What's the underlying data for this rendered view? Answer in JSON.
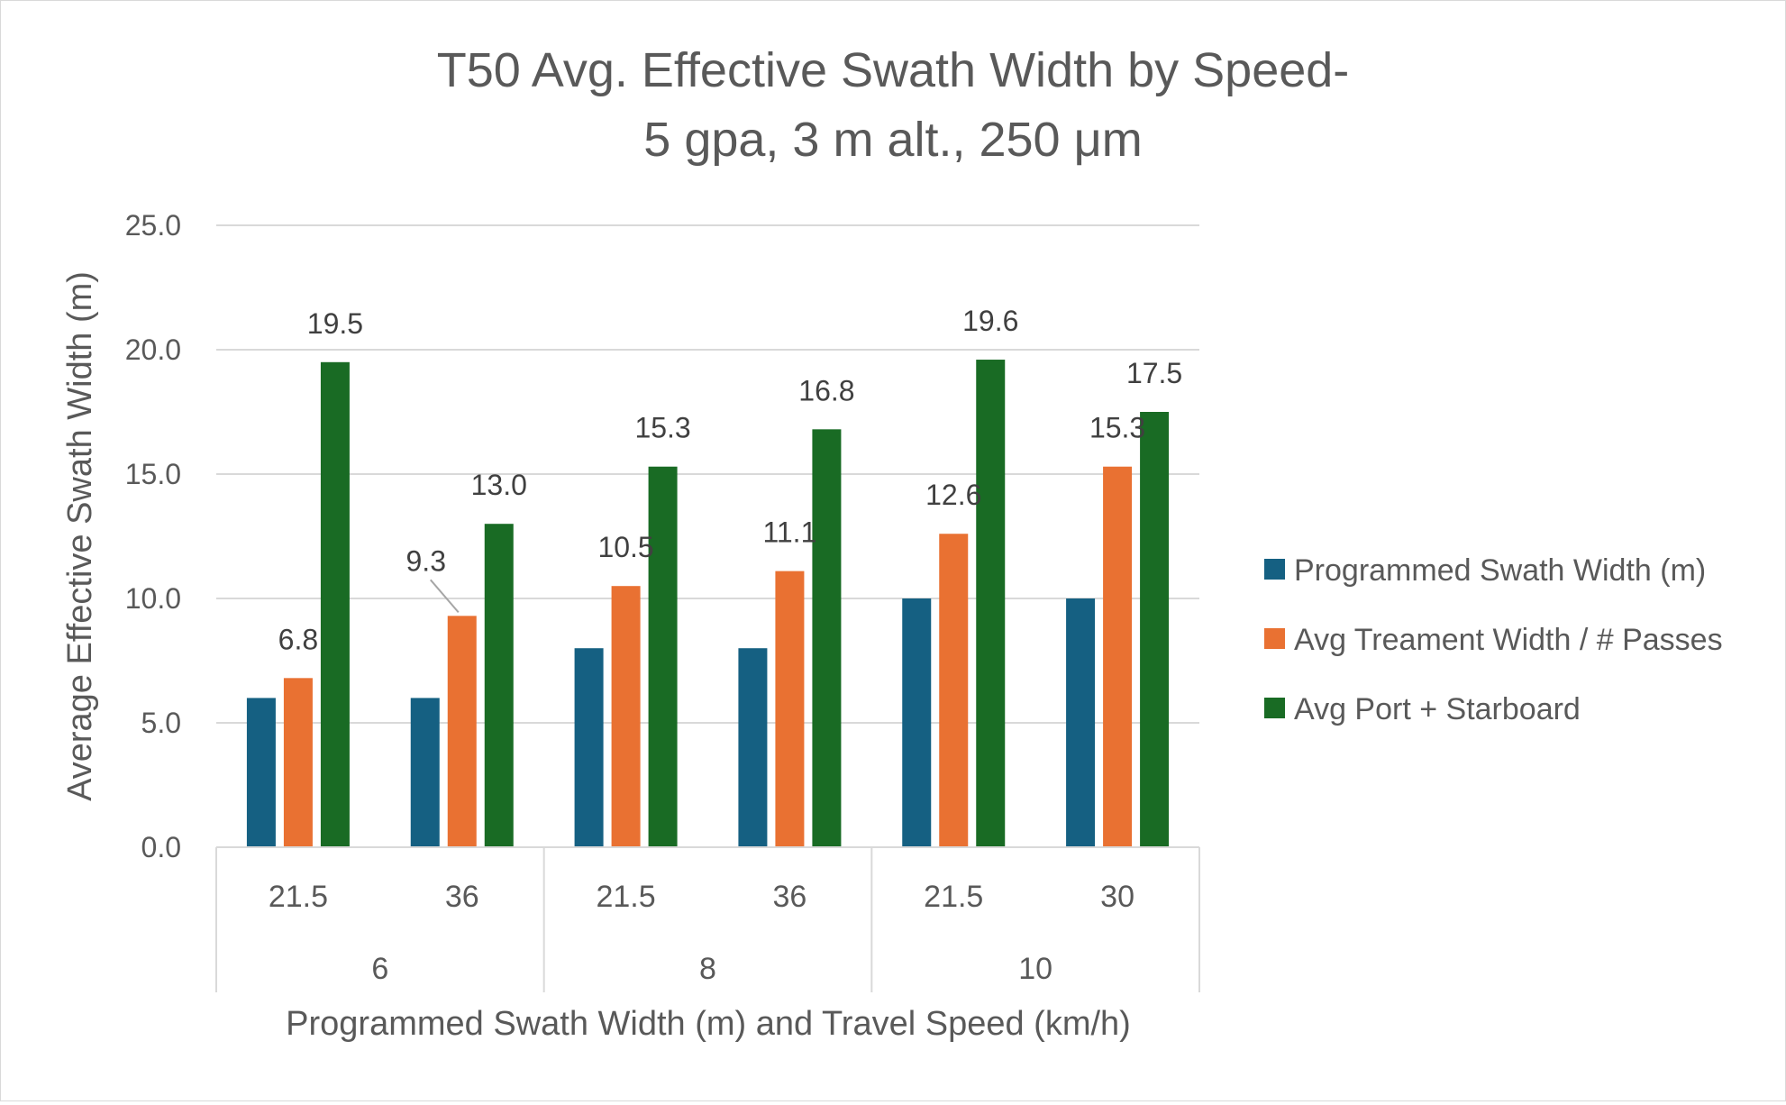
{
  "chart_data": {
    "type": "bar",
    "title_lines": [
      "T50 Avg. Effective Swath Width by Speed-",
      "5 gpa, 3 m alt., 250 μm"
    ],
    "xlabel": "Programmed Swath Width (m) and Travel Speed (km/h)",
    "ylabel": "Average Effective Swath Width (m)",
    "ylim": [
      0,
      25
    ],
    "yticks": [
      "0.0",
      "5.0",
      "10.0",
      "15.0",
      "20.0",
      "25.0"
    ],
    "grid": true,
    "legend_position": "right",
    "categories": [
      "21.5",
      "36",
      "21.5",
      "36",
      "21.5",
      "30"
    ],
    "category_groups": [
      {
        "label": "6",
        "span": 2
      },
      {
        "label": "8",
        "span": 2
      },
      {
        "label": "10",
        "span": 2
      }
    ],
    "series": [
      {
        "name": "Programmed Swath Width (m)",
        "color": "#156082",
        "values": [
          6,
          6,
          8,
          8,
          10,
          10
        ],
        "show_labels": false
      },
      {
        "name": "Avg Treament Width / # Passes",
        "color": "#E97132",
        "values": [
          6.8,
          9.3,
          10.5,
          11.1,
          12.6,
          15.3
        ],
        "labels": [
          "6.8",
          "9.3",
          "10.5",
          "11.1",
          "12.6",
          "15.3"
        ],
        "show_labels": true
      },
      {
        "name": "Avg Port + Starboard",
        "color": "#196B24",
        "values": [
          19.5,
          13.0,
          15.3,
          16.8,
          19.6,
          17.5
        ],
        "labels": [
          "19.5",
          "13.0",
          "15.3",
          "16.8",
          "19.6",
          "17.5"
        ],
        "show_labels": true
      }
    ]
  }
}
